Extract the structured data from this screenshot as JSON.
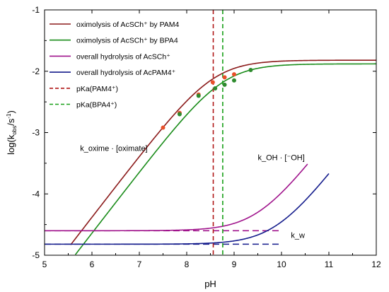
{
  "chart_data": {
    "type": "line",
    "xlabel": "pH",
    "ylabel": "log(k_obs/s⁻¹)",
    "xlim": [
      5,
      12
    ],
    "ylim": [
      -5,
      -1
    ],
    "xticks": [
      "5",
      "6",
      "7",
      "8",
      "9",
      "10",
      "11",
      "12"
    ],
    "yticks": [
      "-5",
      "-4",
      "-3",
      "-2",
      "-1"
    ],
    "grid": false,
    "legend_position": "top-left",
    "series": [
      {
        "name": "oximolysis of AcSCh⁺ by PAM4",
        "color": "#8b1a1a",
        "dash": "solid",
        "model": "pka",
        "ymax": -1.82,
        "pka": 8.56,
        "x_range": [
          5.55,
          12
        ]
      },
      {
        "name": "oximolysis of AcSCh⁺ by BPA4",
        "color": "#1a8c1a",
        "dash": "solid",
        "model": "pka",
        "ymax": -1.88,
        "pka": 8.76,
        "x_range": [
          5.65,
          12
        ]
      },
      {
        "name": "overall hydrolysis of AcSCh⁺",
        "color": "#a0148c",
        "dash": "solid",
        "model": "hydrolysis",
        "kw": -4.6,
        "b": -14.1,
        "x_range": [
          5,
          10.55
        ]
      },
      {
        "name": "overall hydrolysis of AcPAM4⁺",
        "color": "#141c8c",
        "dash": "solid",
        "model": "hydrolysis",
        "kw": -4.82,
        "b": -14.7,
        "x_range": [
          5,
          11
        ]
      },
      {
        "name": "pKa(PAM4⁺)",
        "color": "#b01818",
        "dash": "dashed",
        "model": "vline",
        "x": 8.56
      },
      {
        "name": "pKa(BPA4⁺)",
        "color": "#18a018",
        "dash": "dashed",
        "model": "vline",
        "x": 8.76
      }
    ],
    "asymptotes": [
      {
        "color": "#a0148c",
        "model": "hline",
        "y": -4.6,
        "x_range": [
          5,
          10
        ]
      },
      {
        "color": "#141c8c",
        "model": "hline",
        "y": -4.82,
        "x_range": [
          5,
          10
        ]
      },
      {
        "color": "#a0148c",
        "model": "slope1",
        "b": -14.1,
        "x_range": [
          7.3,
          8.6
        ]
      },
      {
        "color": "#141c8c",
        "model": "slope1",
        "b": -14.7,
        "x_range": [
          7.55,
          8.9
        ]
      }
    ],
    "points": [
      {
        "series": "PAM4",
        "color": "#e8502a",
        "x": 7.5,
        "y": -2.92
      },
      {
        "series": "PAM4",
        "color": "#e8502a",
        "x": 7.85,
        "y": -2.68
      },
      {
        "series": "PAM4",
        "color": "#e8502a",
        "x": 8.25,
        "y": -2.38
      },
      {
        "series": "PAM4",
        "color": "#e8502a",
        "x": 8.55,
        "y": -2.18
      },
      {
        "series": "PAM4",
        "color": "#e8502a",
        "x": 8.8,
        "y": -2.1
      },
      {
        "series": "PAM4",
        "color": "#e8502a",
        "x": 9.0,
        "y": -2.05
      },
      {
        "series": "BPA4",
        "color": "#2e8b2e",
        "x": 7.85,
        "y": -2.7
      },
      {
        "series": "BPA4",
        "color": "#2e8b2e",
        "x": 8.25,
        "y": -2.4
      },
      {
        "series": "BPA4",
        "color": "#2e8b2e",
        "x": 8.6,
        "y": -2.28
      },
      {
        "series": "BPA4",
        "color": "#2e8b2e",
        "x": 8.8,
        "y": -2.22
      },
      {
        "series": "BPA4",
        "color": "#2e8b2e",
        "x": 9.0,
        "y": -2.15
      },
      {
        "series": "BPA4",
        "color": "#2e8b2e",
        "x": 9.35,
        "y": -1.98
      }
    ],
    "annotations": [
      {
        "name": "k-oxime-label",
        "text": "k_oxime · [oximate]",
        "x": 5.75,
        "y": -3.3
      },
      {
        "name": "k-oh-label",
        "text": "k_OH · [⁻OH]",
        "x": 9.5,
        "y": -3.45
      },
      {
        "name": "kw-label",
        "text": "k_w",
        "x": 10.2,
        "y": -4.72
      }
    ]
  }
}
